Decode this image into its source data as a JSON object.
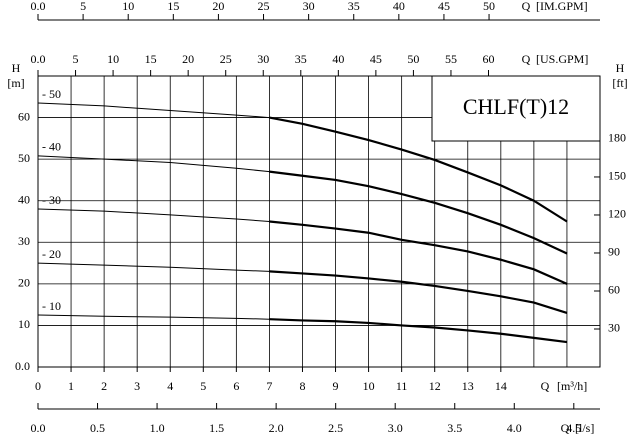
{
  "chart_data": {
    "type": "line",
    "title": "CHLF(T)12",
    "y_label": "H",
    "y_unit": "[m]",
    "y2_label": "H",
    "y2_unit": "[ft]",
    "x_label": "Q",
    "x_unit": "[m³/h]",
    "x": [
      0,
      2,
      4,
      6,
      7,
      8,
      9,
      10,
      11,
      12,
      13,
      14,
      15,
      16
    ],
    "xlim": [
      0,
      17
    ],
    "xticks": [
      0,
      1,
      2,
      3,
      4,
      5,
      6,
      7,
      8,
      9,
      10,
      11,
      12,
      13,
      14
    ],
    "xgrid": [
      1,
      2,
      3,
      4,
      5,
      6,
      7,
      8,
      9,
      10,
      11,
      12,
      13,
      14,
      15,
      16
    ],
    "ylim": [
      0,
      70
    ],
    "yticks": [
      {
        "value": 0,
        "label": "0.0"
      },
      10,
      20,
      30,
      40,
      50,
      60
    ],
    "y2lim": [
      0,
      229.7
    ],
    "y2ticks": [
      30,
      60,
      90,
      120,
      150,
      180
    ],
    "grid": true,
    "bold_from_x": 7,
    "color": "#000000",
    "series": [
      {
        "name": "- 50",
        "values": [
          63.5,
          62.8,
          61.7,
          60.6,
          60,
          58.5,
          56.6,
          54.6,
          52.3,
          49.8,
          46.8,
          43.7,
          40,
          35
        ]
      },
      {
        "name": "- 40",
        "values": [
          50.8,
          50,
          49.2,
          47.8,
          47,
          46,
          45,
          43.5,
          41.6,
          39.5,
          37,
          34.2,
          31,
          27.3
        ]
      },
      {
        "name": "- 30",
        "values": [
          38,
          37.5,
          36.6,
          35.6,
          35,
          34.2,
          33.3,
          32.3,
          30.6,
          29.3,
          27.8,
          25.8,
          23.5,
          20
        ]
      },
      {
        "name": "- 20",
        "values": [
          25,
          24.5,
          24,
          23.3,
          23,
          22.5,
          22,
          21.3,
          20.5,
          19.5,
          18.3,
          17,
          15.5,
          13
        ]
      },
      {
        "name": "- 10",
        "values": [
          12.5,
          12.2,
          12,
          11.7,
          11.5,
          11.2,
          11,
          10.6,
          10,
          9.5,
          8.8,
          8,
          7,
          6
        ]
      }
    ],
    "top_axes": [
      {
        "label": "Q",
        "unit": "[IM.GPM]",
        "xlim": [
          0,
          62.3
        ],
        "xticks": [
          {
            "value": 0,
            "label": "0.0"
          },
          5,
          10,
          15,
          20,
          25,
          30,
          35,
          40,
          45,
          50
        ]
      },
      {
        "label": "Q",
        "unit": "[US.GPM]",
        "xlim": [
          0,
          74.85
        ],
        "xticks": [
          {
            "value": 0,
            "label": "0.0"
          },
          5,
          10,
          15,
          20,
          25,
          30,
          35,
          40,
          45,
          50,
          55,
          60
        ]
      }
    ],
    "bottom_axis": {
      "label": "Q",
      "unit": "[l/s]",
      "xlim": [
        0,
        4.72
      ],
      "xticks": [
        {
          "value": 0,
          "label": "0.0"
        },
        0.5,
        {
          "value": 1,
          "label": "1.0"
        },
        1.5,
        {
          "value": 2,
          "label": "2.0"
        },
        2.5,
        {
          "value": 3,
          "label": "3.0"
        },
        3.5,
        {
          "value": 4,
          "label": "4.0"
        },
        4.5
      ]
    }
  }
}
